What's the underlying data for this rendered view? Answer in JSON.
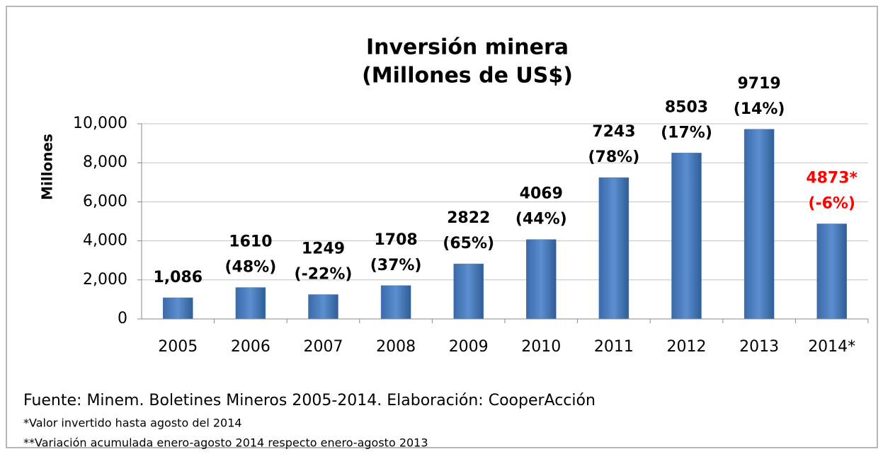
{
  "chart_data": {
    "type": "bar",
    "title": "Inversión minera",
    "subtitle": "(Millones de US$)",
    "y_label": "Millones",
    "categories": [
      "2005",
      "2006",
      "2007",
      "2008",
      "2009",
      "2010",
      "2011",
      "2012",
      "2013",
      "2014*"
    ],
    "values": [
      1086,
      1610,
      1249,
      1708,
      2822,
      4069,
      7243,
      8503,
      9719,
      4873
    ],
    "value_labels": [
      "1,086",
      "1610",
      "1249",
      "1708",
      "2822",
      "4069",
      "7243",
      "8503",
      "9719",
      "4873*"
    ],
    "change_labels": [
      null,
      "(48%)",
      "(-22%)",
      "(37%)",
      "(65%)",
      "(44%)",
      "(78%)",
      "(17%)",
      "(14%)",
      "(-6%)"
    ],
    "label_colors": [
      "#000000",
      "#000000",
      "#000000",
      "#000000",
      "#000000",
      "#000000",
      "#000000",
      "#000000",
      "#000000",
      "#ff0000"
    ],
    "color": "#4a7ebb",
    "ylim": [
      0,
      10000
    ],
    "yticks": [
      0,
      {
        "value": 2000,
        "label": "2,000"
      },
      {
        "value": 4000,
        "label": "4,000"
      },
      {
        "value": 6000,
        "label": "6,000"
      },
      {
        "value": 8000,
        "label": "8,000"
      },
      {
        "value": 10000,
        "label": "10,000"
      }
    ],
    "grid": true
  },
  "source": "Fuente: Minem. Boletines Mineros  2005-2014. Elaboración: CooperAcción",
  "notes": [
    "*Valor invertido hasta agosto del 2014",
    "**Variación acumulada enero-agosto 2014 respecto enero-agosto 2013"
  ]
}
